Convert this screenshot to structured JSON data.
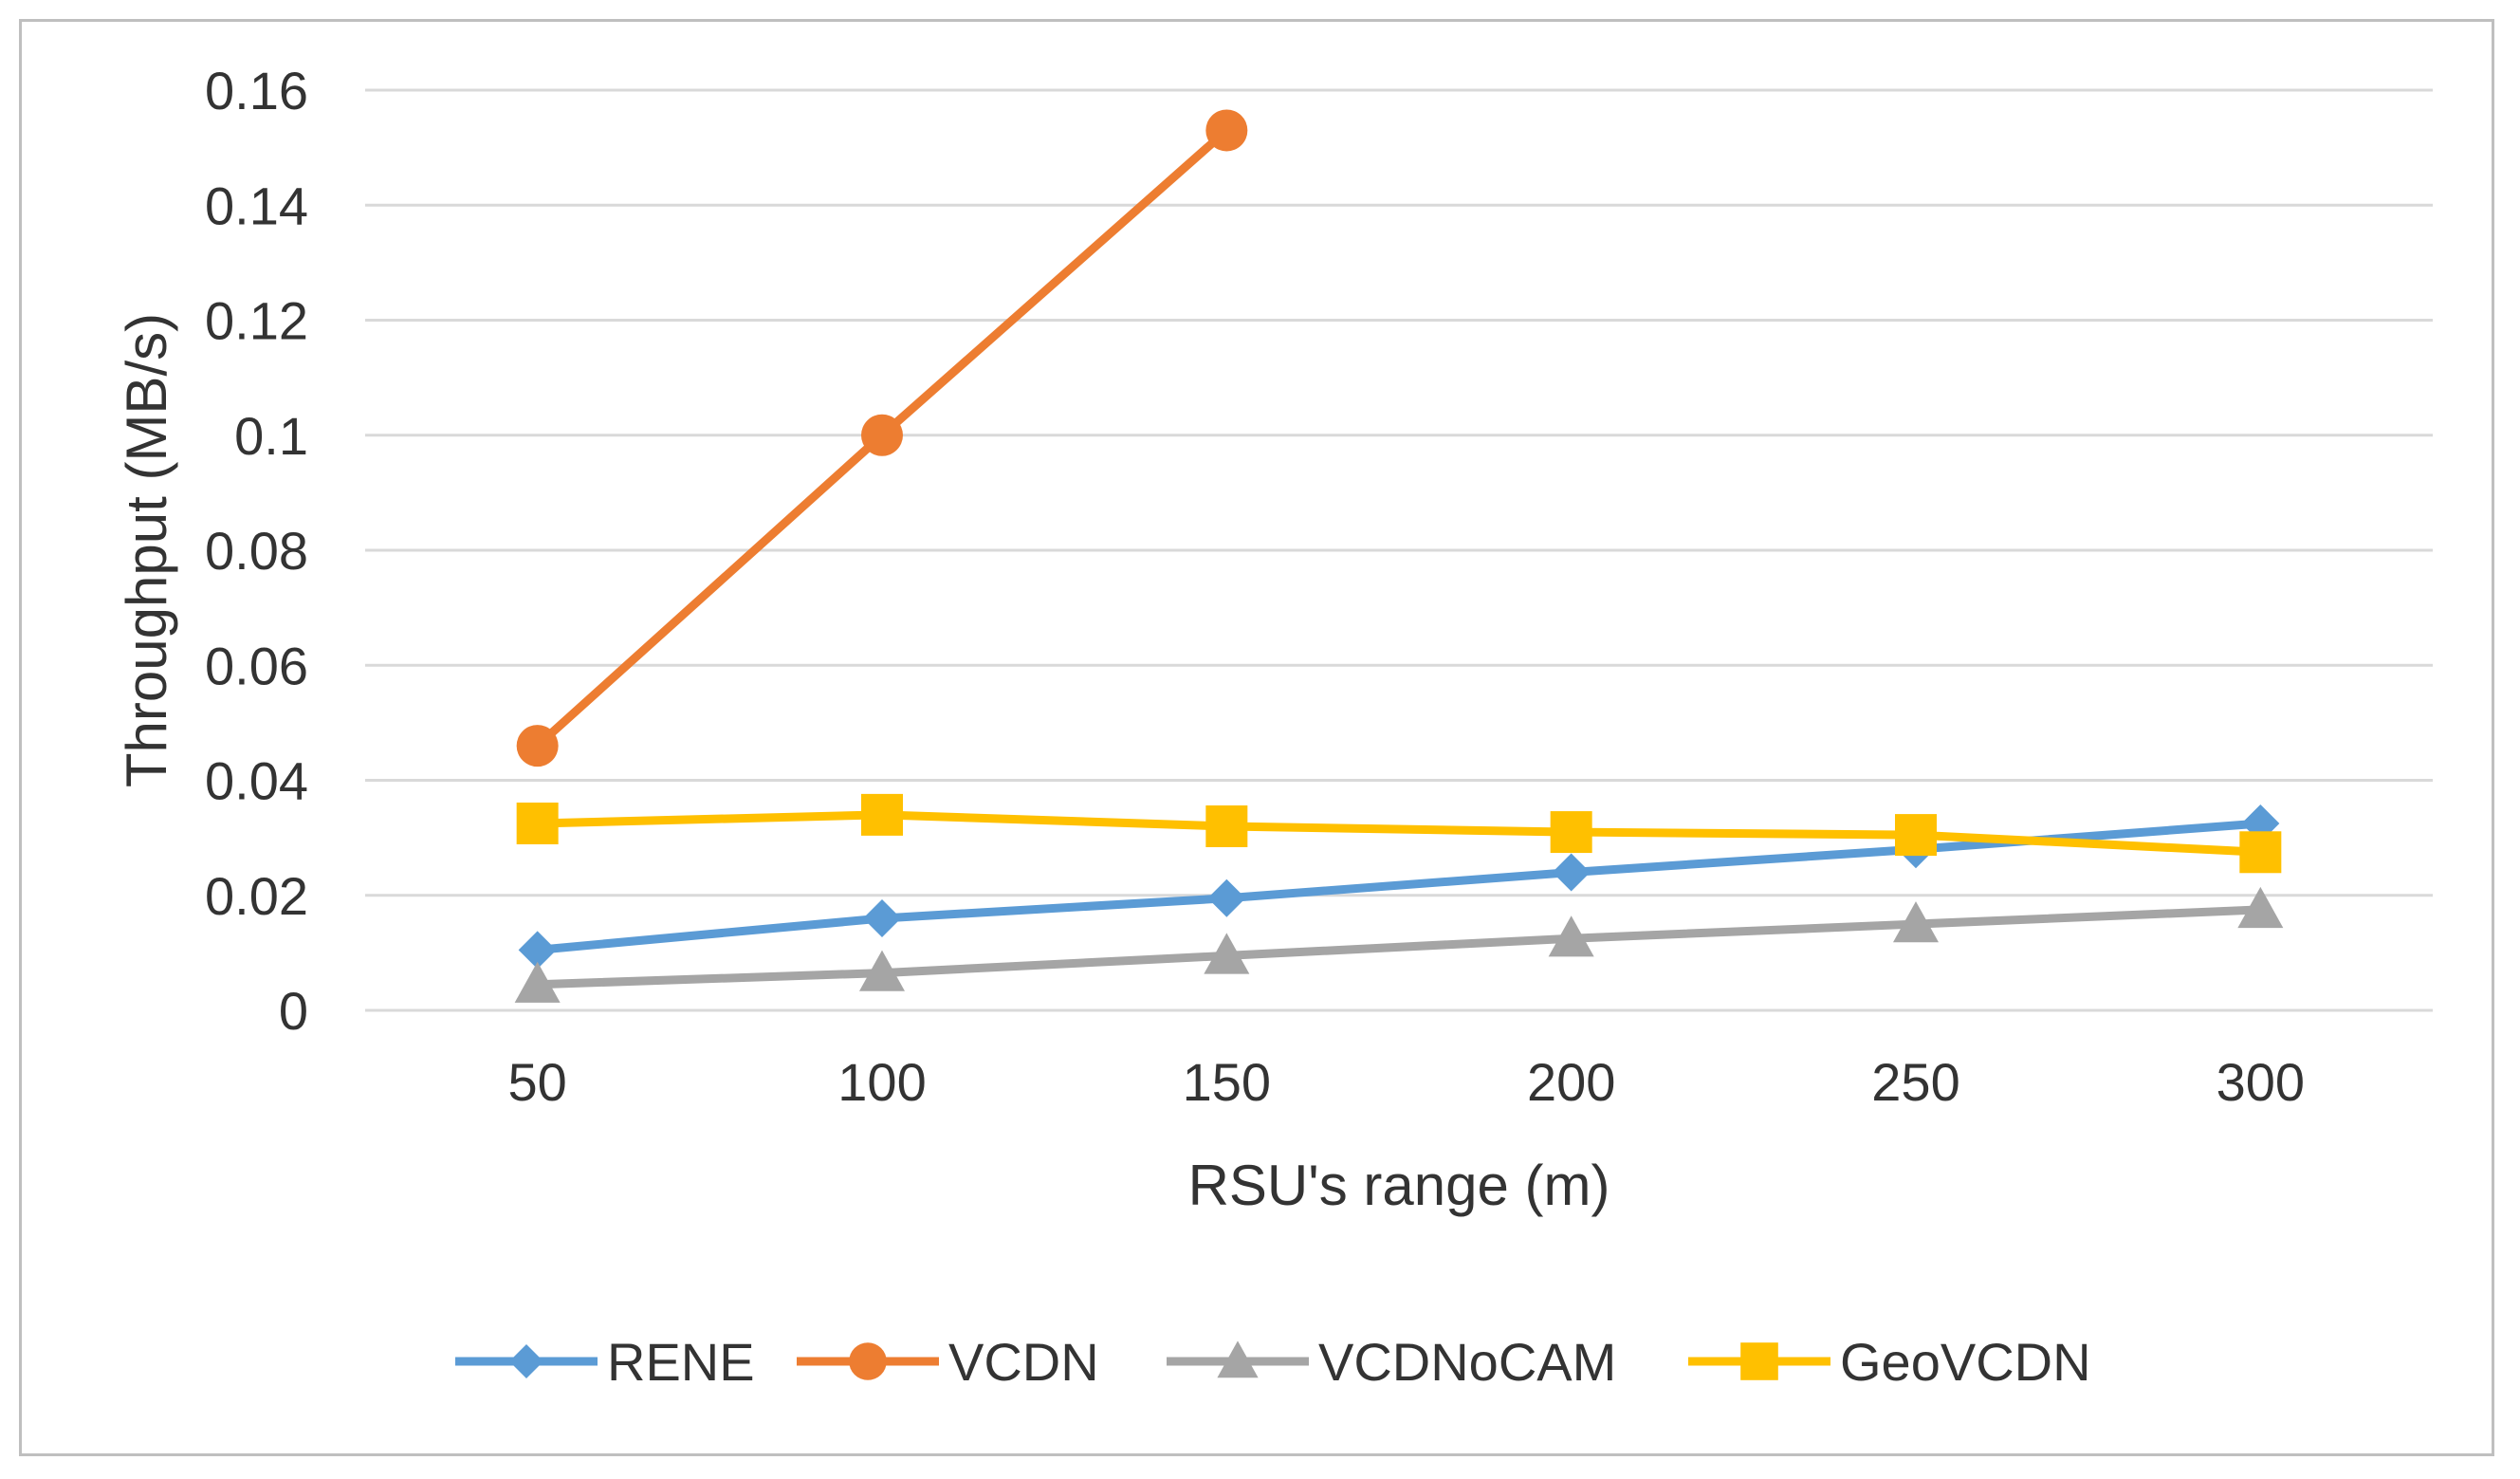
{
  "chart_data": {
    "type": "line",
    "title": "",
    "xlabel": "RSU's range (m)",
    "ylabel": "Throughput (MB/s)",
    "categories": [
      "50",
      "100",
      "150",
      "200",
      "250",
      "300"
    ],
    "yticks": [
      "0",
      "0.02",
      "0.04",
      "0.06",
      "0.08",
      "0.1",
      "0.12",
      "0.14",
      "0.16"
    ],
    "ylim": [
      0,
      0.16
    ],
    "grid": true,
    "legend_position": "bottom",
    "series": [
      {
        "name": "RENE",
        "color": "#5b9bd5",
        "marker": "diamond",
        "values": [
          0.0105,
          0.016,
          0.0195,
          0.024,
          0.028,
          0.0325
        ]
      },
      {
        "name": "VCDN",
        "color": "#ed7d31",
        "marker": "circle",
        "values": [
          0.046,
          0.1,
          0.153,
          null,
          null,
          null
        ]
      },
      {
        "name": "VCDNoCAM",
        "color": "#a5a5a5",
        "marker": "triangle",
        "values": [
          0.0045,
          0.0065,
          0.0095,
          0.0125,
          0.015,
          0.0175
        ]
      },
      {
        "name": "GeoVCDN",
        "color": "#ffc000",
        "marker": "square",
        "values": [
          0.0325,
          0.034,
          0.032,
          0.031,
          0.0305,
          0.0275
        ]
      }
    ]
  }
}
